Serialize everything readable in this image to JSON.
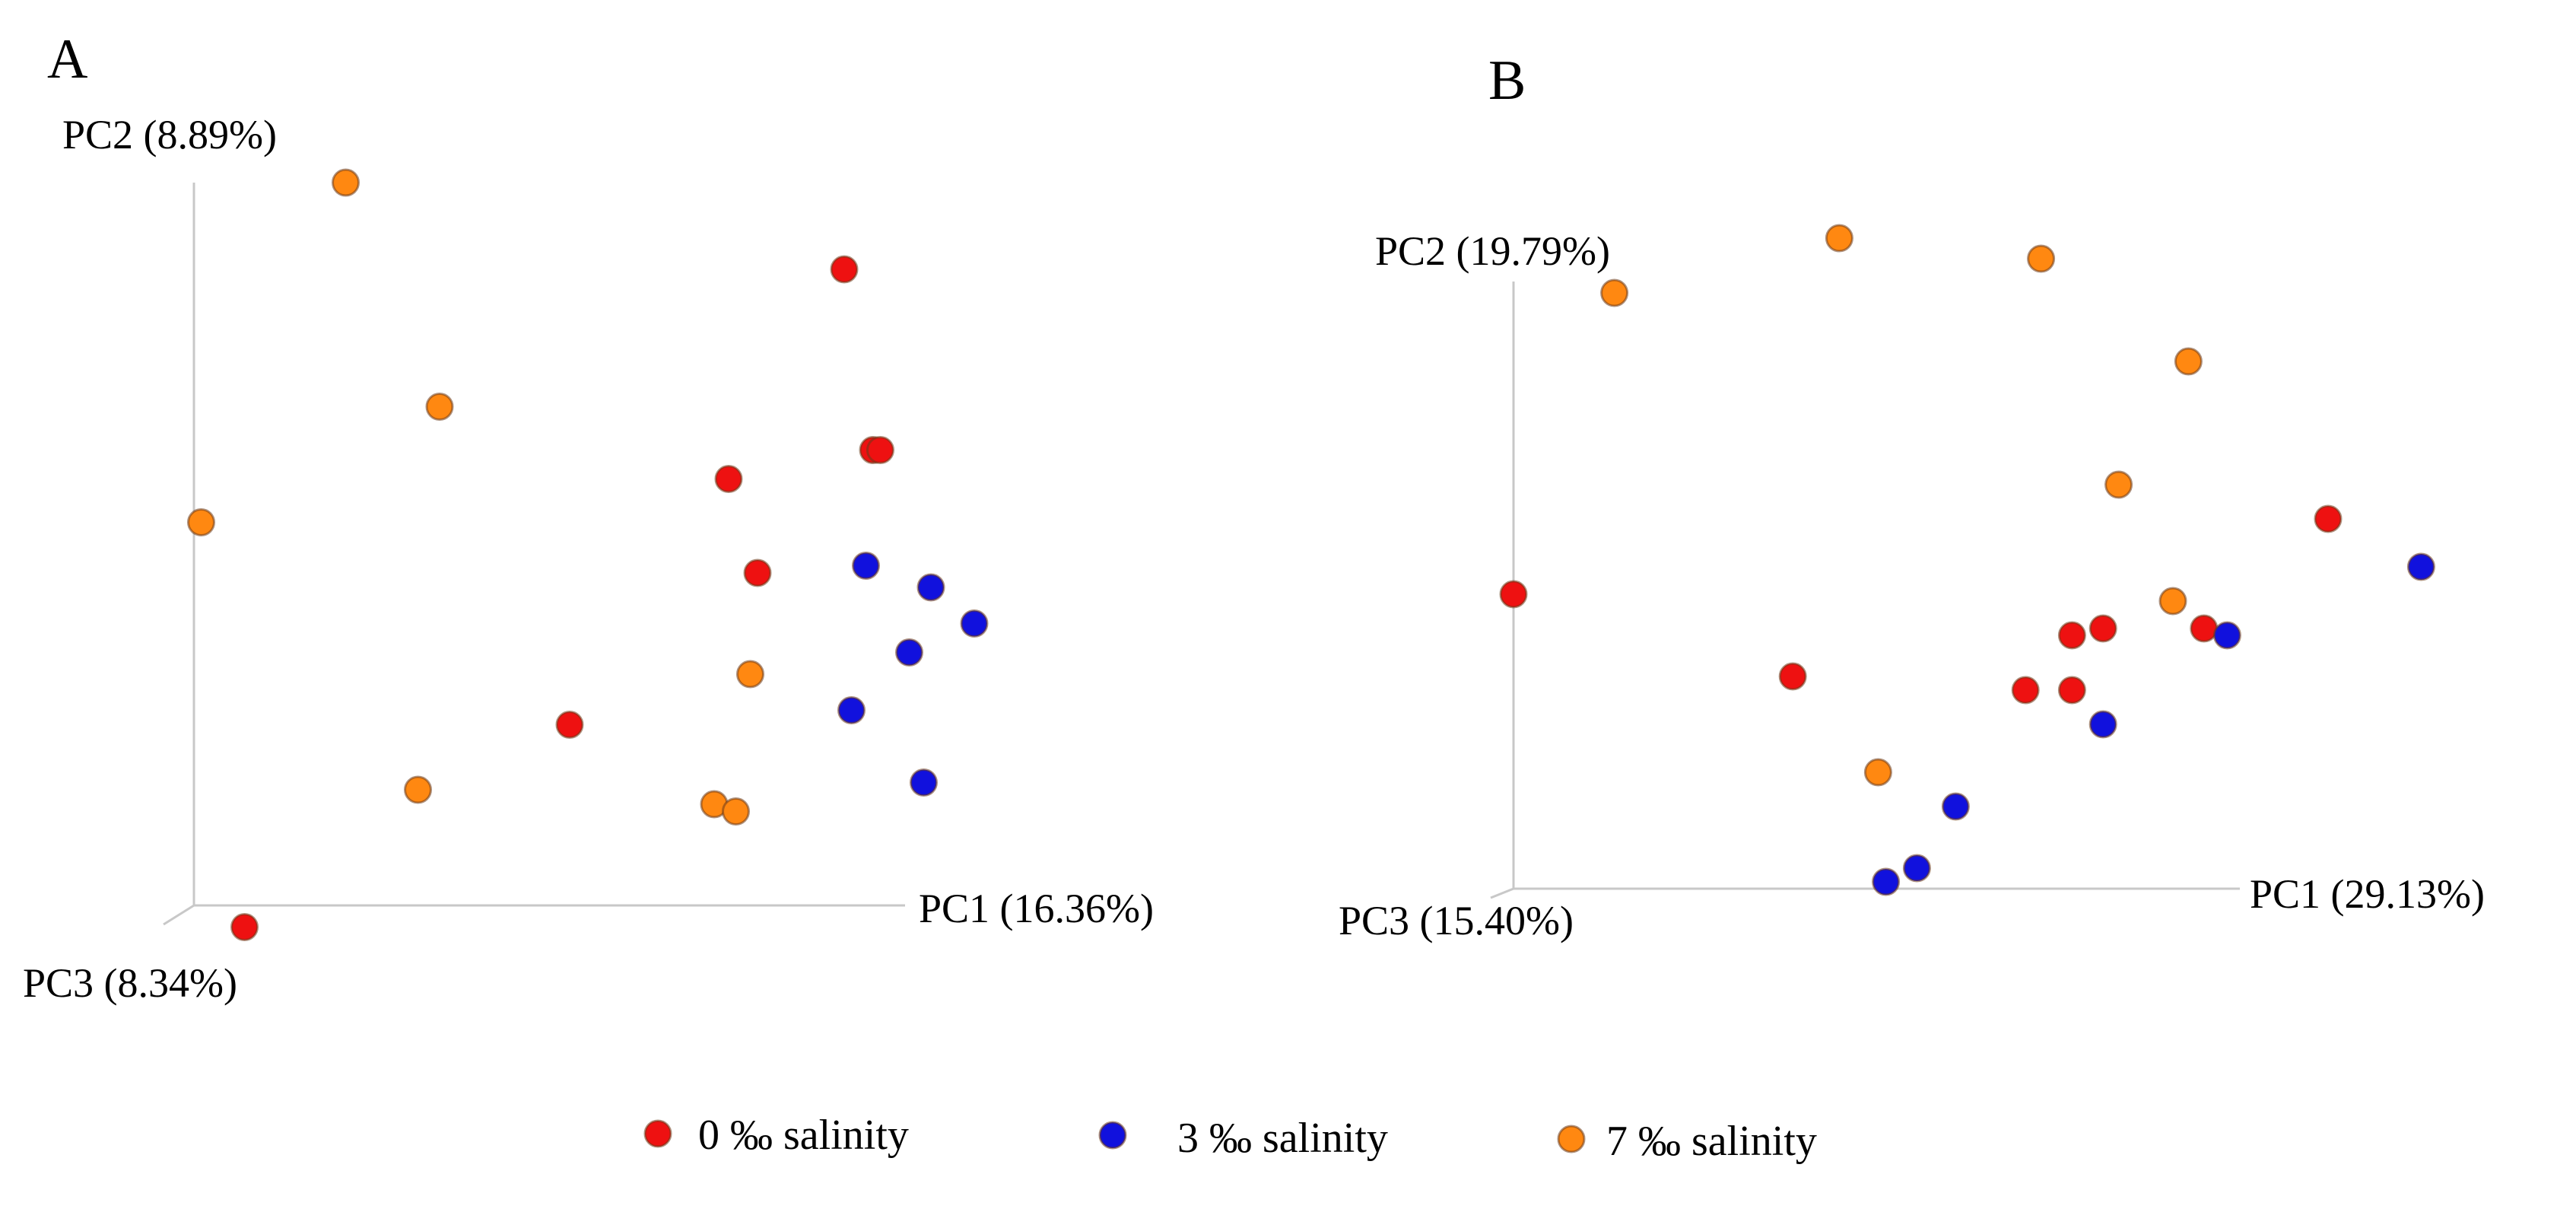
{
  "chart_data": [
    {
      "type": "scatter",
      "panel_label": "A",
      "projection": "3d",
      "axes": {
        "x": "PC1 (16.36%)",
        "y": "PC2 (8.89%)",
        "z": "PC3 (8.34%)"
      },
      "series": [
        {
          "name": "0 ‰ salinity",
          "color": "#ee1111",
          "points": [
            [
              0.9,
              0.88,
              0
            ],
            [
              0.94,
              0.63,
              0
            ],
            [
              0.95,
              0.63,
              0
            ],
            [
              0.74,
              0.59,
              0
            ],
            [
              0.78,
              0.46,
              0
            ],
            [
              0.52,
              0.25,
              0
            ],
            [
              0.07,
              -0.03,
              0
            ]
          ]
        },
        {
          "name": "3 ‰ salinity",
          "color": "#1111dd",
          "points": [
            [
              0.93,
              0.47,
              0
            ],
            [
              1.02,
              0.44,
              0
            ],
            [
              1.08,
              0.39,
              0
            ],
            [
              0.99,
              0.35,
              0
            ],
            [
              0.91,
              0.27,
              0
            ],
            [
              1.01,
              0.17,
              0
            ]
          ]
        },
        {
          "name": "7 ‰ salinity",
          "color": "#ff8811",
          "points": [
            [
              0.21,
              1.0,
              0
            ],
            [
              0.34,
              0.69,
              0
            ],
            [
              0.01,
              0.53,
              0
            ],
            [
              0.77,
              0.32,
              0
            ],
            [
              0.31,
              0.16,
              0
            ],
            [
              0.72,
              0.14,
              0
            ],
            [
              0.75,
              0.13,
              0
            ]
          ]
        }
      ]
    },
    {
      "type": "scatter",
      "panel_label": "B",
      "projection": "3d",
      "axes": {
        "x": "PC1 (29.13%)",
        "y": "PC2 (19.79%)",
        "z": "PC3 (15.40%)"
      },
      "series": [
        {
          "name": "0 ‰ salinity",
          "color": "#ee1111",
          "points": [
            [
              0.0,
              0.43,
              0
            ],
            [
              0.36,
              0.31,
              0
            ],
            [
              0.66,
              0.29,
              0
            ],
            [
              0.72,
              0.37,
              0
            ],
            [
              0.76,
              0.38,
              0
            ],
            [
              0.72,
              0.29,
              0
            ],
            [
              1.05,
              0.54,
              0
            ],
            [
              0.89,
              0.38,
              0
            ]
          ]
        },
        {
          "name": "3 ‰ salinity",
          "color": "#1111dd",
          "points": [
            [
              1.17,
              0.47,
              0
            ],
            [
              0.92,
              0.37,
              0
            ],
            [
              0.76,
              0.24,
              0
            ],
            [
              0.57,
              0.12,
              0
            ],
            [
              0.52,
              0.03,
              0
            ],
            [
              0.48,
              0.01,
              0
            ]
          ]
        },
        {
          "name": "7 ‰ salinity",
          "color": "#ff8811",
          "points": [
            [
              0.13,
              0.87,
              0
            ],
            [
              0.42,
              0.95,
              0
            ],
            [
              0.68,
              0.92,
              0
            ],
            [
              0.87,
              0.77,
              0
            ],
            [
              0.78,
              0.59,
              0
            ],
            [
              0.85,
              0.42,
              0
            ],
            [
              0.47,
              0.17,
              0
            ]
          ]
        }
      ]
    }
  ],
  "legend": [
    {
      "label": "0 ‰ salinity",
      "color": "#ee1111"
    },
    {
      "label": "3 ‰ salinity",
      "color": "#1111dd"
    },
    {
      "label": "7 ‰ salinity",
      "color": "#ff8811"
    }
  ]
}
